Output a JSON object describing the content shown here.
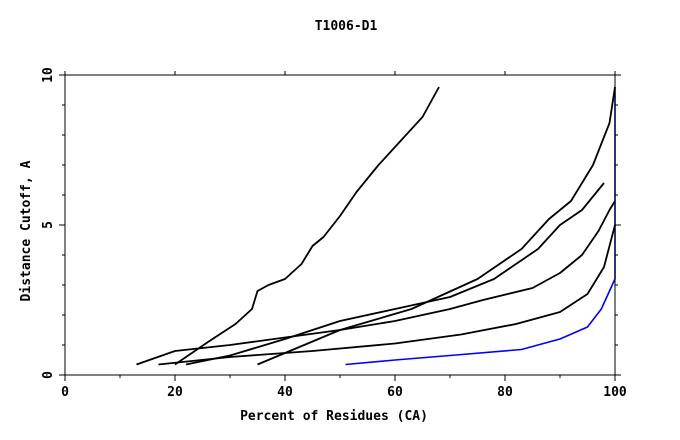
{
  "chart_data": {
    "type": "line",
    "title": "T1006-D1",
    "xlabel": "Percent of Residues (CA)",
    "ylabel": "Distance Cutoff, A",
    "xlim": [
      0,
      100
    ],
    "ylim": [
      0,
      10
    ],
    "x_ticks": [
      0,
      20,
      40,
      60,
      80,
      100
    ],
    "x_tick_labels": [
      "0",
      "20",
      "40",
      "60",
      "80",
      "100"
    ],
    "y_ticks": [
      0,
      5,
      10
    ],
    "y_tick_labels": [
      "0",
      "5",
      "10"
    ],
    "grid": false,
    "legend": "none",
    "colors": {
      "models": "#ff8c00",
      "highlight": "#000000",
      "best": "#0000ff",
      "axes": "#000000"
    },
    "series": [
      {
        "color": "#0000ff",
        "x": [
          51,
          60,
          70,
          83,
          90,
          95,
          97.5,
          99,
          100,
          100,
          100,
          100
        ],
        "y": [
          0.35,
          0.5,
          0.65,
          0.85,
          1.2,
          1.6,
          2.2,
          2.8,
          3.2,
          5,
          8,
          9.6
        ]
      },
      {
        "color": "#000000",
        "x": [
          13,
          20,
          30,
          40,
          50,
          60,
          70,
          76,
          85,
          90,
          94,
          97,
          99,
          100
        ],
        "y": [
          0.35,
          0.8,
          1.0,
          1.25,
          1.5,
          1.8,
          2.2,
          2.5,
          2.9,
          3.4,
          4.0,
          4.8,
          5.5,
          5.8
        ]
      },
      {
        "color": "#000000",
        "x": [
          17,
          30,
          45,
          60,
          72,
          82,
          90,
          95,
          98,
          100
        ],
        "y": [
          0.35,
          0.6,
          0.8,
          1.05,
          1.35,
          1.7,
          2.1,
          2.7,
          3.6,
          5.0
        ]
      },
      {
        "color": "#000000",
        "x": [
          22,
          30,
          40,
          50,
          60,
          70,
          78,
          86,
          90,
          94,
          98
        ],
        "y": [
          0.35,
          0.65,
          1.2,
          1.8,
          2.2,
          2.6,
          3.2,
          4.2,
          5.0,
          5.5,
          6.4
        ]
      },
      {
        "color": "#000000",
        "x": [
          20,
          26,
          31,
          34,
          35,
          37,
          40,
          43,
          45,
          47,
          50,
          53,
          57,
          60,
          65,
          68
        ],
        "y": [
          0.35,
          1.1,
          1.7,
          2.2,
          2.8,
          3.0,
          3.2,
          3.7,
          4.3,
          4.6,
          5.3,
          6.1,
          7.0,
          7.6,
          8.6,
          9.6
        ]
      },
      {
        "color": "#000000",
        "x": [
          35,
          50,
          63,
          75,
          83,
          88,
          92,
          96,
          99,
          100
        ],
        "y": [
          0.35,
          1.5,
          2.2,
          3.2,
          4.2,
          5.2,
          5.8,
          7.0,
          8.4,
          9.6
        ]
      }
    ]
  }
}
